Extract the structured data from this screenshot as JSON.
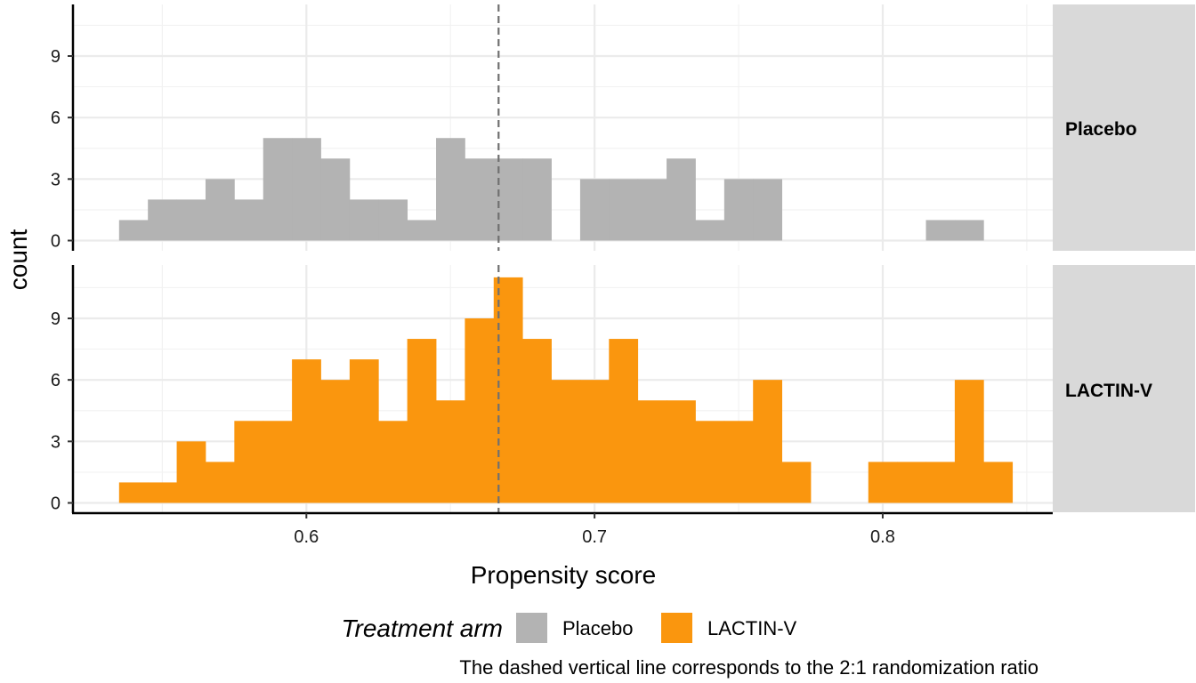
{
  "chart_data": {
    "type": "bar",
    "subtype": "faceted-histogram",
    "xlabel": "Propensity score",
    "ylabel": "count",
    "xlim": [
      0.519,
      0.859
    ],
    "ylim": [
      0,
      11.4
    ],
    "bin_width": 0.01,
    "x_ticks": [
      "0.6",
      "0.7",
      "0.8"
    ],
    "x_tick_values": [
      0.6,
      0.7,
      0.8
    ],
    "y_ticks": [
      "0",
      "3",
      "6",
      "9"
    ],
    "y_tick_values": [
      0,
      3,
      6,
      9
    ],
    "reference_line": {
      "x": 0.6667,
      "style": "dashed",
      "color": "#707070"
    },
    "legend": {
      "title": "Treatment arm",
      "position": "bottom"
    },
    "grid": true,
    "bin_starts": [
      0.535,
      0.545,
      0.555,
      0.565,
      0.575,
      0.585,
      0.595,
      0.605,
      0.615,
      0.625,
      0.635,
      0.645,
      0.655,
      0.665,
      0.675,
      0.685,
      0.695,
      0.705,
      0.715,
      0.725,
      0.735,
      0.745,
      0.755,
      0.765,
      0.775,
      0.785,
      0.795,
      0.805,
      0.815,
      0.825,
      0.835
    ],
    "series": [
      {
        "name": "Placebo",
        "facet": "Placebo",
        "color": "#b3b3b3",
        "counts": [
          1,
          2,
          2,
          3,
          2,
          5,
          5,
          4,
          2,
          2,
          1,
          5,
          4,
          4,
          4,
          0,
          3,
          3,
          3,
          4,
          1,
          3,
          3,
          0,
          0,
          0,
          0,
          0,
          1,
          1,
          0
        ]
      },
      {
        "name": "LACTIN-V",
        "facet": "LACTIN-V",
        "color": "#fa960e",
        "counts": [
          1,
          1,
          3,
          2,
          4,
          4,
          7,
          6,
          7,
          4,
          8,
          5,
          9,
          11,
          8,
          6,
          6,
          8,
          5,
          5,
          4,
          4,
          6,
          2,
          0,
          0,
          2,
          2,
          2,
          6,
          2
        ]
      }
    ],
    "caption": "The dashed vertical line corresponds to the 2:1 randomization ratio"
  }
}
